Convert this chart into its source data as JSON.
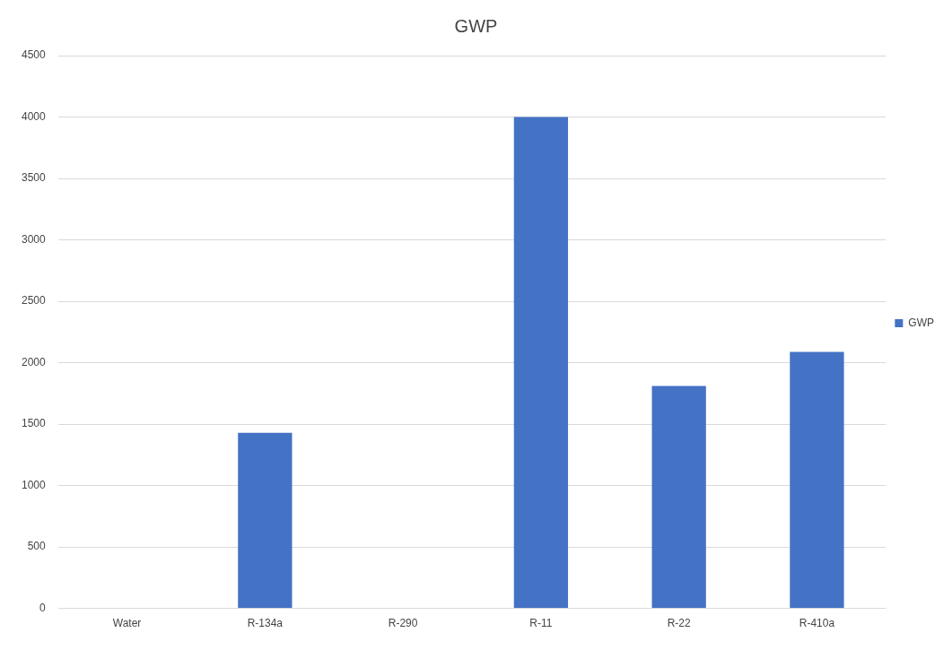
{
  "chart_data": {
    "type": "bar",
    "title": "GWP",
    "categories": [
      "Water",
      "R-134a",
      "R-290",
      "R-11",
      "R-22",
      "R-410a"
    ],
    "series": [
      {
        "name": "GWP",
        "color": "#4472c4",
        "values": [
          0,
          1430,
          0,
          4000,
          1810,
          2088
        ]
      }
    ],
    "ylim": [
      0,
      4500
    ],
    "yticks": [
      0,
      500,
      1000,
      1500,
      2000,
      2500,
      3000,
      3500,
      4000,
      4500
    ],
    "grid": "y",
    "legend": "right"
  }
}
